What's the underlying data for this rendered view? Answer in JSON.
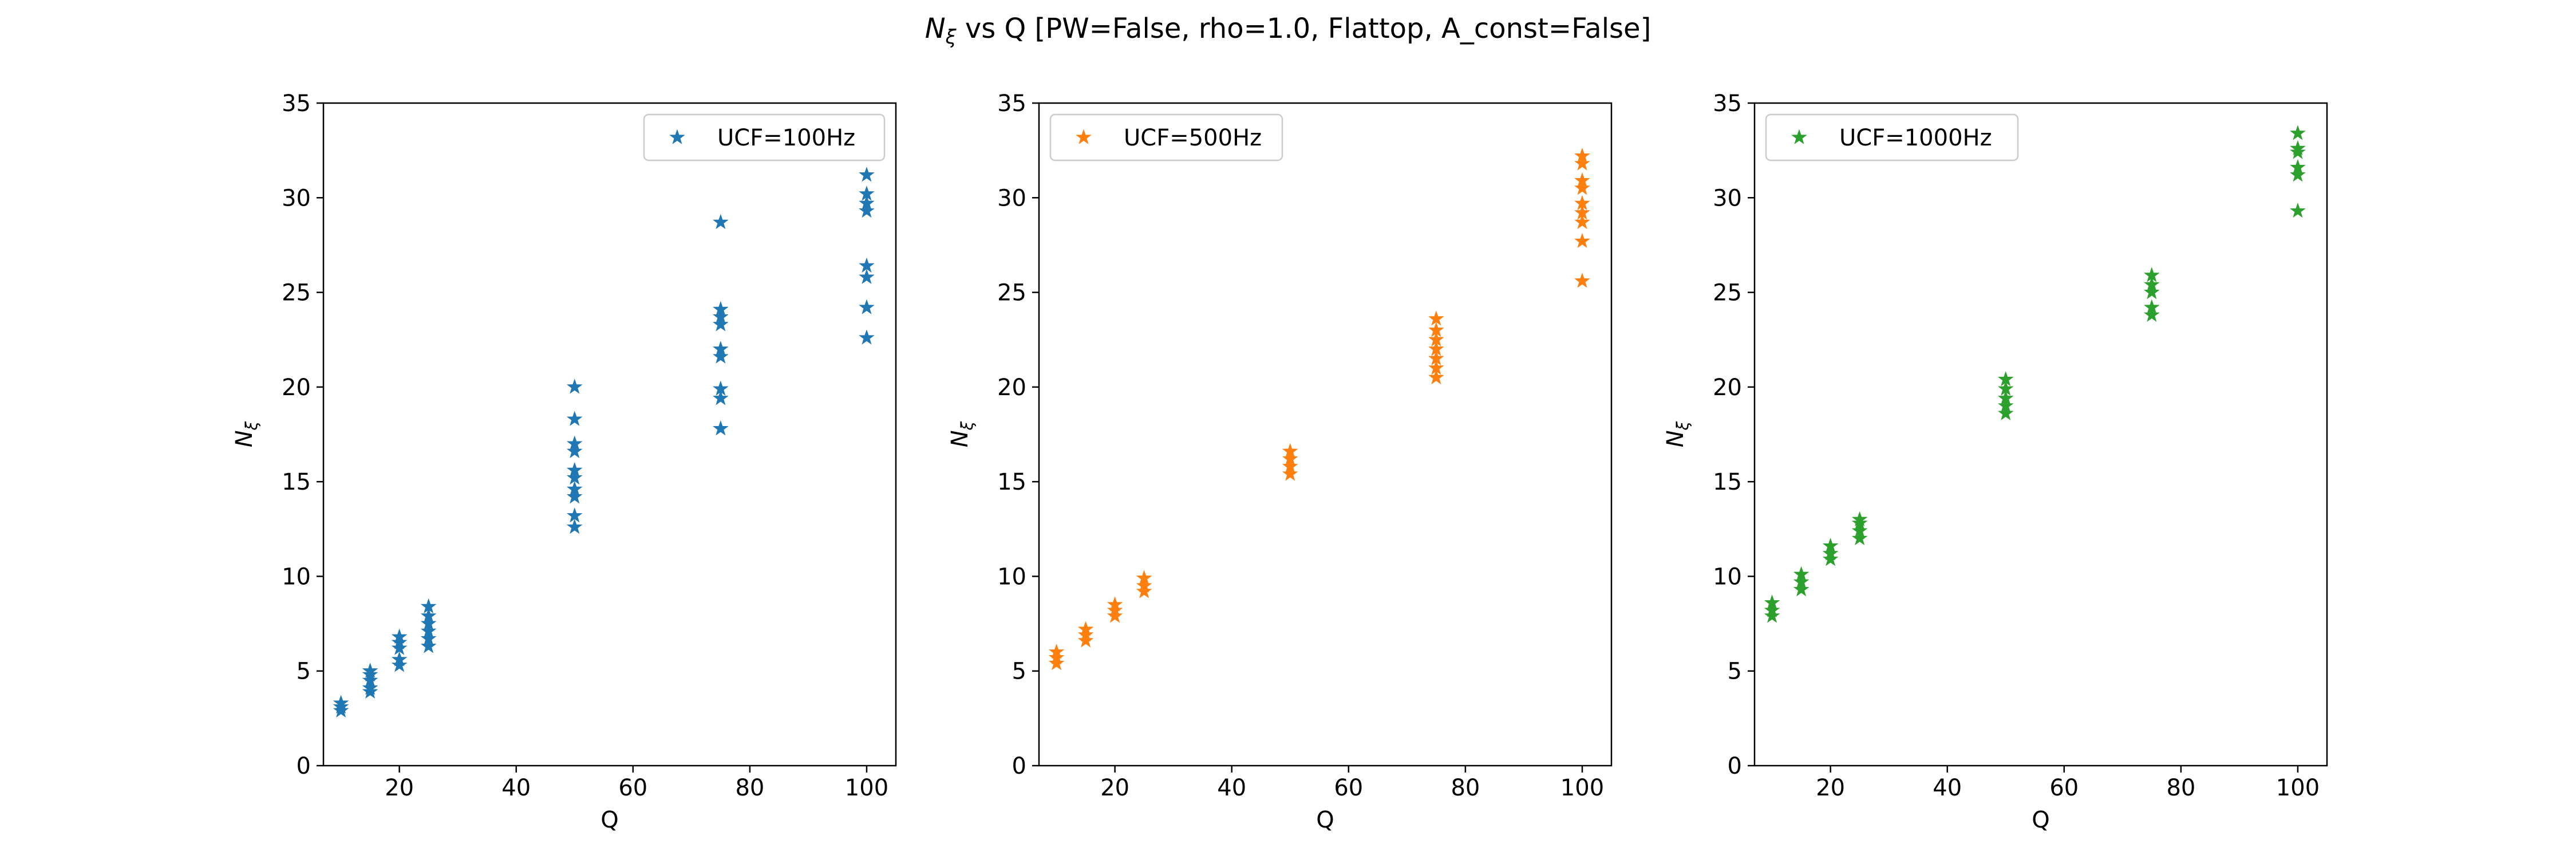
{
  "title": {
    "main": "N",
    "sub": "ξ",
    "rest": " vs Q [PW=False, rho=1.0, Flattop, A_const=False]"
  },
  "chart_data": [
    {
      "type": "scatter",
      "xlabel": "Q",
      "ylabel": {
        "main": "N",
        "sub": "ξ"
      },
      "xlim": [
        7,
        105
      ],
      "ylim": [
        0,
        35
      ],
      "xticks": [
        20,
        40,
        60,
        80,
        100
      ],
      "yticks": [
        0,
        5,
        10,
        15,
        20,
        25,
        30,
        35
      ],
      "legend_loc": "upper right",
      "marker": "star",
      "series": [
        {
          "name": "UCF=100Hz",
          "color": "#1f77b4",
          "points": [
            [
              10,
              2.9
            ],
            [
              10,
              3.1
            ],
            [
              10,
              3.3
            ],
            [
              15,
              3.9
            ],
            [
              15,
              4.1
            ],
            [
              15,
              4.5
            ],
            [
              15,
              4.8
            ],
            [
              15,
              5.0
            ],
            [
              20,
              5.3
            ],
            [
              20,
              5.6
            ],
            [
              20,
              6.2
            ],
            [
              20,
              6.5
            ],
            [
              20,
              6.8
            ],
            [
              25,
              6.3
            ],
            [
              25,
              6.7
            ],
            [
              25,
              7.1
            ],
            [
              25,
              7.5
            ],
            [
              25,
              7.9
            ],
            [
              25,
              8.4
            ],
            [
              50,
              12.6
            ],
            [
              50,
              13.2
            ],
            [
              50,
              14.2
            ],
            [
              50,
              14.6
            ],
            [
              50,
              15.2
            ],
            [
              50,
              15.6
            ],
            [
              50,
              16.6
            ],
            [
              50,
              17.0
            ],
            [
              50,
              18.3
            ],
            [
              50,
              20.0
            ],
            [
              75,
              17.8
            ],
            [
              75,
              19.4
            ],
            [
              75,
              19.9
            ],
            [
              75,
              21.6
            ],
            [
              75,
              22.0
            ],
            [
              75,
              23.3
            ],
            [
              75,
              23.7
            ],
            [
              75,
              24.1
            ],
            [
              75,
              28.7
            ],
            [
              100,
              22.6
            ],
            [
              100,
              24.2
            ],
            [
              100,
              25.8
            ],
            [
              100,
              26.4
            ],
            [
              100,
              29.3
            ],
            [
              100,
              29.7
            ],
            [
              100,
              30.2
            ],
            [
              100,
              31.2
            ]
          ]
        },
        {
          "name": "UCF=500Hz",
          "color": "#ff7f0e",
          "points": [
            [
              10,
              5.4
            ],
            [
              10,
              5.7
            ],
            [
              10,
              6.0
            ],
            [
              15,
              6.6
            ],
            [
              15,
              6.9
            ],
            [
              15,
              7.2
            ],
            [
              20,
              7.9
            ],
            [
              20,
              8.2
            ],
            [
              20,
              8.5
            ],
            [
              25,
              9.2
            ],
            [
              25,
              9.5
            ],
            [
              25,
              9.9
            ],
            [
              50,
              15.4
            ],
            [
              50,
              15.8
            ],
            [
              50,
              16.2
            ],
            [
              50,
              16.6
            ],
            [
              75,
              20.5
            ],
            [
              75,
              21.0
            ],
            [
              75,
              21.5
            ],
            [
              75,
              22.0
            ],
            [
              75,
              22.5
            ],
            [
              75,
              23.0
            ],
            [
              75,
              23.6
            ],
            [
              100,
              25.6
            ],
            [
              100,
              27.7
            ],
            [
              100,
              28.7
            ],
            [
              100,
              29.2
            ],
            [
              100,
              29.7
            ],
            [
              100,
              30.5
            ],
            [
              100,
              30.9
            ],
            [
              100,
              31.8
            ],
            [
              100,
              32.2
            ]
          ]
        },
        {
          "name": "UCF=1000Hz",
          "color": "#2ca02c",
          "points": [
            [
              10,
              7.9
            ],
            [
              10,
              8.2
            ],
            [
              10,
              8.6
            ],
            [
              15,
              9.3
            ],
            [
              15,
              9.7
            ],
            [
              15,
              10.1
            ],
            [
              20,
              10.9
            ],
            [
              20,
              11.2
            ],
            [
              20,
              11.6
            ],
            [
              25,
              12.0
            ],
            [
              25,
              12.4
            ],
            [
              25,
              12.8
            ],
            [
              25,
              13.0
            ],
            [
              50,
              18.6
            ],
            [
              50,
              19.0
            ],
            [
              50,
              19.4
            ],
            [
              50,
              19.9
            ],
            [
              50,
              20.4
            ],
            [
              75,
              23.8
            ],
            [
              75,
              24.2
            ],
            [
              75,
              25.0
            ],
            [
              75,
              25.4
            ],
            [
              75,
              25.9
            ],
            [
              100,
              29.3
            ],
            [
              100,
              31.2
            ],
            [
              100,
              31.6
            ],
            [
              100,
              32.4
            ],
            [
              100,
              32.6
            ],
            [
              100,
              33.4
            ]
          ]
        }
      ]
    }
  ]
}
